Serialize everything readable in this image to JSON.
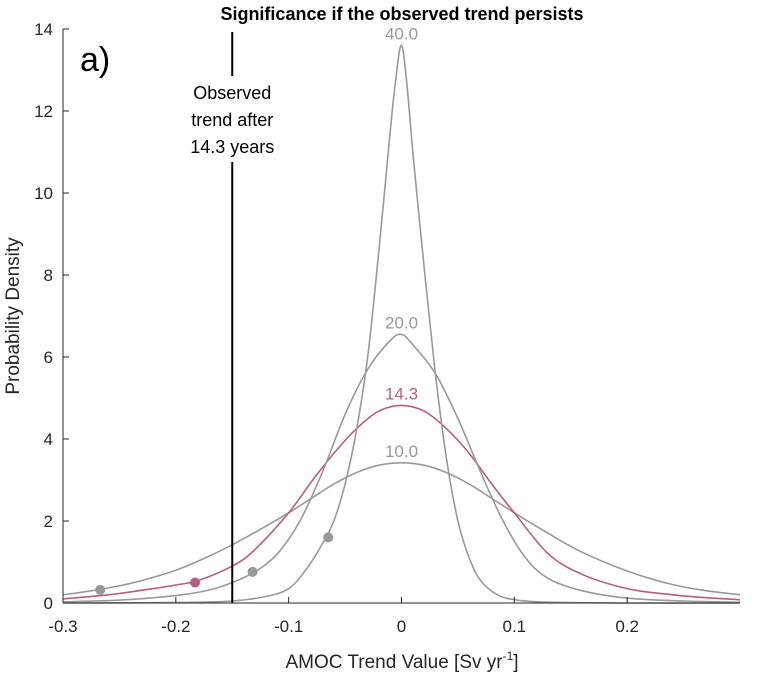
{
  "chart_data": {
    "type": "line",
    "title": "Significance if the observed trend persists",
    "panel_label": "a)",
    "xlabel_main": "AMOC Trend Value [Sv yr",
    "xlabel_sup": "-1",
    "xlabel_close": "]",
    "ylabel": "Probability Density",
    "xlim": [
      -0.3,
      0.3
    ],
    "ylim": [
      0,
      14
    ],
    "xticks": [
      -0.3,
      -0.2,
      -0.1,
      0,
      0.1,
      0.2
    ],
    "xtick_labels": [
      "-0.3",
      "-0.2",
      "-0.1",
      "0",
      "0.1",
      "0.2"
    ],
    "yticks": [
      0,
      2,
      4,
      6,
      8,
      10,
      12,
      14
    ],
    "ytick_labels": [
      "0",
      "2",
      "4",
      "6",
      "8",
      "10",
      "12",
      "14"
    ],
    "grid": false,
    "observed_trend_x": -0.15,
    "annotation_lines": [
      "Observed",
      "trend after",
      "14.3 years"
    ],
    "colors": {
      "gray": "#999999",
      "highlight": "#b85c82",
      "axis": "#262626",
      "vline": "#000000"
    },
    "series": [
      {
        "name": "10.0",
        "color": "#999999",
        "x": [
          -0.3,
          -0.27,
          -0.24,
          -0.2,
          -0.17,
          -0.15,
          -0.13,
          -0.1,
          -0.08,
          -0.06,
          -0.04,
          -0.02,
          0,
          0.02,
          0.04,
          0.06,
          0.08,
          0.1,
          0.13,
          0.16,
          0.2,
          0.24,
          0.27,
          0.3
        ],
        "y": [
          0.2,
          0.32,
          0.48,
          0.8,
          1.15,
          1.42,
          1.72,
          2.2,
          2.55,
          2.9,
          3.18,
          3.36,
          3.42,
          3.36,
          3.18,
          2.9,
          2.55,
          2.2,
          1.7,
          1.24,
          0.78,
          0.45,
          0.3,
          0.2
        ],
        "marker": {
          "x": -0.267,
          "y": 0.32
        }
      },
      {
        "name": "14.3",
        "color": "#b85c82",
        "x": [
          -0.3,
          -0.26,
          -0.22,
          -0.2,
          -0.18,
          -0.15,
          -0.13,
          -0.1,
          -0.08,
          -0.06,
          -0.04,
          -0.02,
          0,
          0.02,
          0.04,
          0.06,
          0.08,
          0.1,
          0.13,
          0.16,
          0.2,
          0.24,
          0.27,
          0.3
        ],
        "y": [
          0.1,
          0.2,
          0.35,
          0.44,
          0.55,
          0.9,
          1.3,
          2.2,
          2.95,
          3.65,
          4.25,
          4.68,
          4.82,
          4.68,
          4.25,
          3.65,
          2.9,
          2.2,
          1.2,
          0.7,
          0.35,
          0.2,
          0.13,
          0.08
        ],
        "marker": {
          "x": -0.183,
          "y": 0.5
        }
      },
      {
        "name": "20.0",
        "color": "#999999",
        "x": [
          -0.3,
          -0.25,
          -0.2,
          -0.17,
          -0.15,
          -0.13,
          -0.11,
          -0.09,
          -0.07,
          -0.05,
          -0.03,
          -0.01,
          0,
          0.01,
          0.03,
          0.05,
          0.07,
          0.09,
          0.11,
          0.13,
          0.16,
          0.2,
          0.25,
          0.3
        ],
        "y": [
          0.03,
          0.07,
          0.18,
          0.32,
          0.5,
          0.76,
          1.2,
          2.0,
          3.2,
          4.6,
          5.7,
          6.4,
          6.55,
          6.3,
          5.6,
          4.5,
          3.2,
          2.0,
          1.1,
          0.6,
          0.3,
          0.12,
          0.05,
          0.02
        ],
        "marker": {
          "x": -0.132,
          "y": 0.76
        }
      },
      {
        "name": "40.0",
        "color": "#999999",
        "x": [
          -0.3,
          -0.2,
          -0.15,
          -0.12,
          -0.1,
          -0.085,
          -0.07,
          -0.06,
          -0.05,
          -0.04,
          -0.03,
          -0.02,
          -0.01,
          -0.005,
          0,
          0.005,
          0.01,
          0.02,
          0.03,
          0.04,
          0.05,
          0.06,
          0.07,
          0.085,
          0.1,
          0.12,
          0.15,
          0.2,
          0.3
        ],
        "y": [
          0,
          0.01,
          0.05,
          0.16,
          0.35,
          0.8,
          1.45,
          2.0,
          2.9,
          4.2,
          6.0,
          8.6,
          11.5,
          12.8,
          13.6,
          12.6,
          11.0,
          8.2,
          5.6,
          3.5,
          2.0,
          1.1,
          0.55,
          0.2,
          0.08,
          0.03,
          0.01,
          0,
          0
        ],
        "marker": {
          "x": -0.065,
          "y": 1.6
        }
      }
    ]
  }
}
